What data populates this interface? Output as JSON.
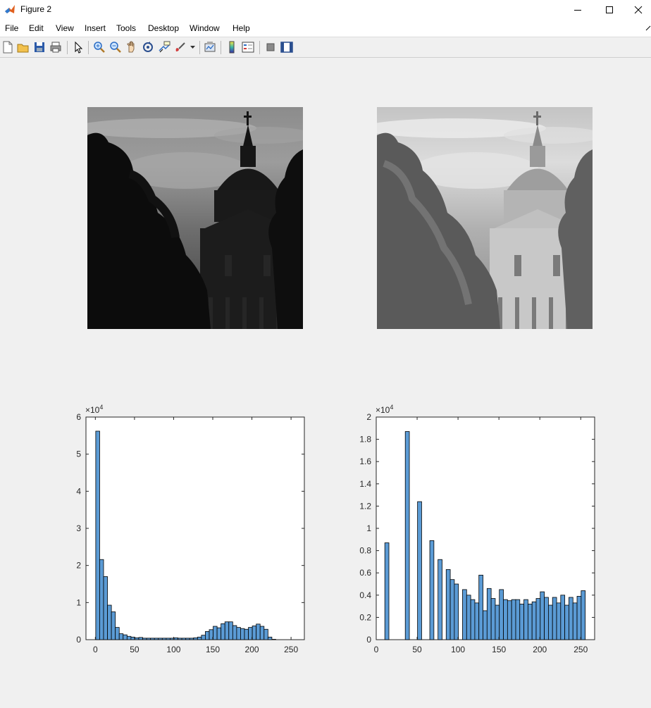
{
  "window": {
    "title": "Figure 2",
    "icon": "matlab-icon"
  },
  "menu": [
    "File",
    "Edit",
    "View",
    "Insert",
    "Tools",
    "Desktop",
    "Window",
    "Help"
  ],
  "toolbar_icons": [
    "new-figure-icon",
    "open-file-icon",
    "save-icon",
    "print-icon",
    "pointer-icon",
    "zoom-in-icon",
    "zoom-out-icon",
    "pan-icon",
    "rotate-3d-icon",
    "data-cursor-icon",
    "brush-icon",
    "link-plot-icon",
    "colorbar-icon",
    "legend-icon",
    "hide-plot-tools-icon",
    "show-plot-tools-icon"
  ],
  "images": [
    {
      "name": "original-grayscale-image",
      "description_colors": [
        "#0b0b0b",
        "#9a9a9a"
      ]
    },
    {
      "name": "equalized-grayscale-image",
      "description_colors": [
        "#4a4a4a",
        "#d8d8d8"
      ]
    }
  ],
  "chart_data": [
    {
      "type": "bar",
      "exponent_label": "×10",
      "exponent_power": "4",
      "xlim": [
        -12,
        267
      ],
      "ylim": [
        0,
        6
      ],
      "xticks": [
        "0",
        "50",
        "100",
        "150",
        "200",
        "250"
      ],
      "yticks": [
        "0",
        "1",
        "2",
        "3",
        "4",
        "5",
        "6"
      ],
      "bar_color": "#5b9bd5",
      "x": [
        3,
        8,
        13,
        18,
        23,
        28,
        33,
        38,
        43,
        48,
        53,
        58,
        63,
        68,
        73,
        78,
        83,
        88,
        93,
        98,
        103,
        108,
        113,
        118,
        123,
        128,
        133,
        138,
        143,
        148,
        153,
        158,
        163,
        168,
        173,
        178,
        183,
        188,
        193,
        198,
        203,
        208,
        213,
        218,
        223,
        228,
        233,
        238,
        243,
        248,
        253
      ],
      "values": [
        5.62,
        2.16,
        1.7,
        0.93,
        0.75,
        0.33,
        0.16,
        0.13,
        0.09,
        0.07,
        0.05,
        0.06,
        0.04,
        0.04,
        0.04,
        0.04,
        0.04,
        0.04,
        0.04,
        0.04,
        0.05,
        0.04,
        0.04,
        0.04,
        0.04,
        0.05,
        0.07,
        0.12,
        0.22,
        0.27,
        0.36,
        0.32,
        0.43,
        0.48,
        0.48,
        0.38,
        0.33,
        0.3,
        0.28,
        0.33,
        0.37,
        0.42,
        0.36,
        0.28,
        0.07,
        0.01,
        0.0,
        0.0,
        0.0,
        0.0,
        0.0
      ]
    },
    {
      "type": "bar",
      "exponent_label": "×10",
      "exponent_power": "4",
      "xlim": [
        0,
        267
      ],
      "ylim": [
        0,
        2
      ],
      "xticks": [
        "0",
        "50",
        "100",
        "150",
        "200",
        "250"
      ],
      "yticks": [
        "0",
        "0.2",
        "0.4",
        "0.6",
        "0.8",
        "1",
        "1.2",
        "1.4",
        "1.6",
        "1.8",
        "2"
      ],
      "bar_color": "#5b9bd5",
      "x": [
        13,
        38,
        53,
        68,
        78,
        88,
        93,
        98,
        108,
        113,
        118,
        123,
        128,
        133,
        138,
        143,
        148,
        153,
        158,
        163,
        168,
        173,
        178,
        183,
        188,
        193,
        198,
        203,
        208,
        213,
        218,
        223,
        228,
        233,
        238,
        243,
        248,
        253
      ],
      "values": [
        0.87,
        1.87,
        1.24,
        0.89,
        0.72,
        0.63,
        0.54,
        0.5,
        0.45,
        0.4,
        0.36,
        0.33,
        0.58,
        0.26,
        0.46,
        0.37,
        0.31,
        0.45,
        0.36,
        0.35,
        0.36,
        0.36,
        0.32,
        0.36,
        0.32,
        0.34,
        0.37,
        0.43,
        0.38,
        0.31,
        0.38,
        0.33,
        0.4,
        0.31,
        0.38,
        0.33,
        0.39,
        0.44
      ]
    }
  ]
}
